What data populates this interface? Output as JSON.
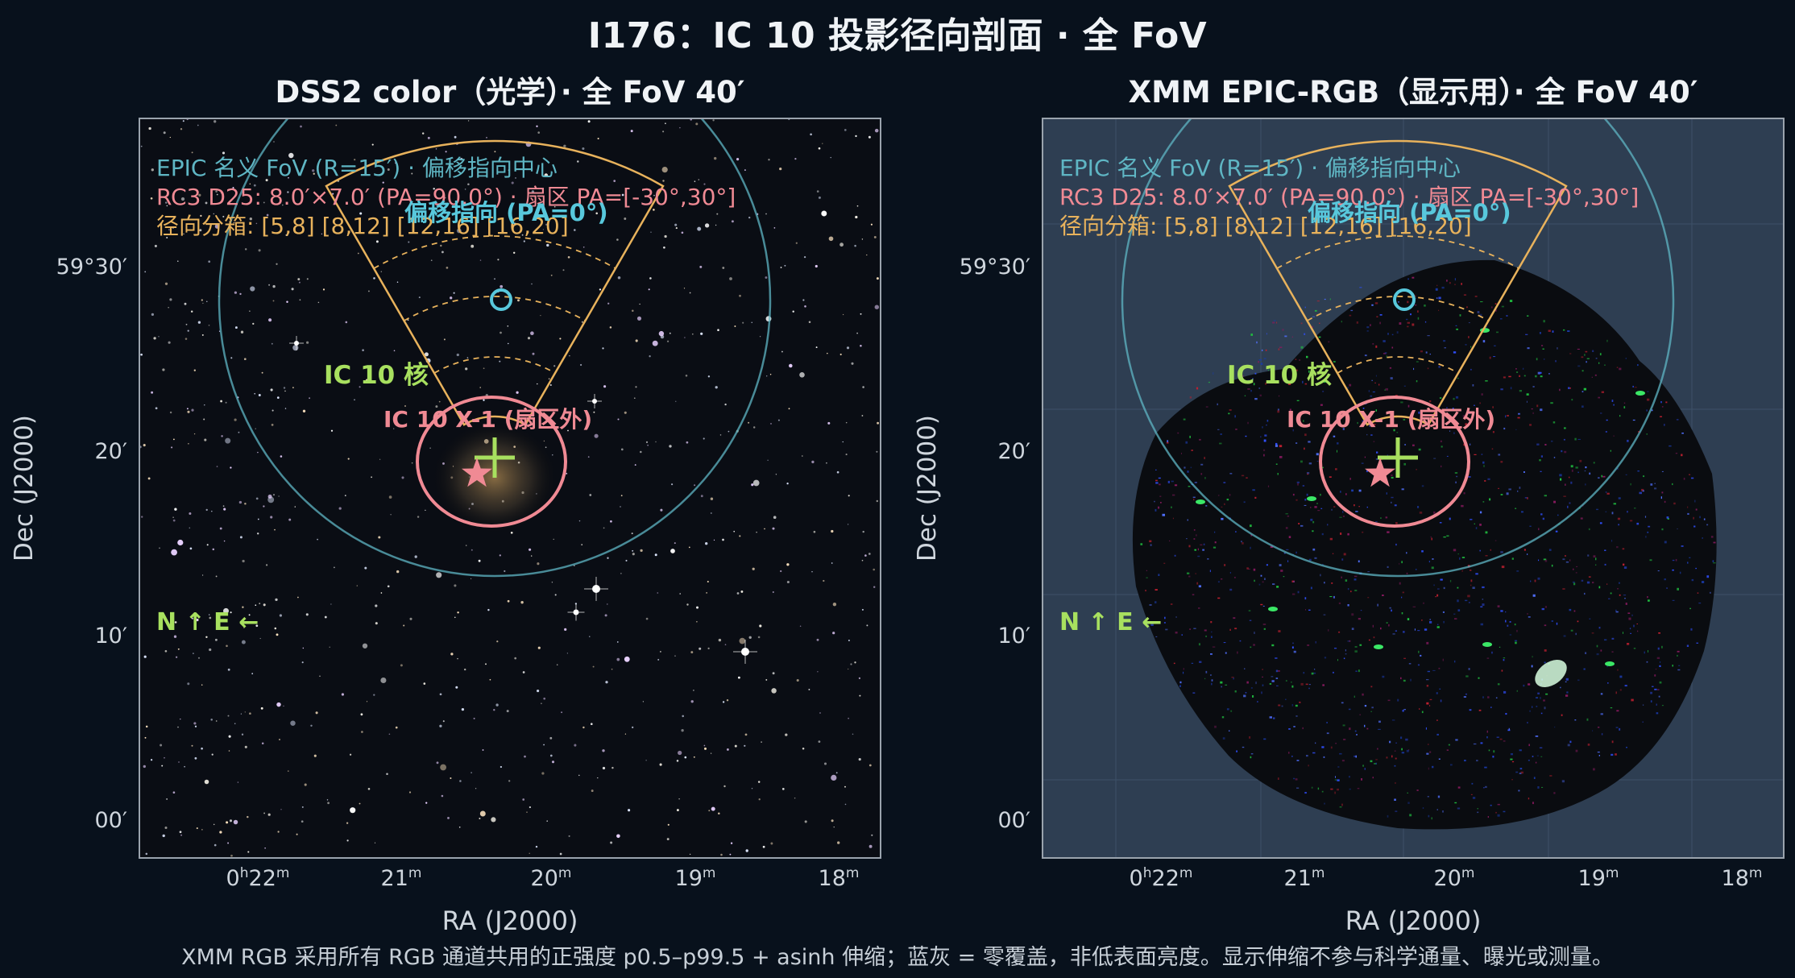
{
  "title": "I176：IC 10 投影径向剖面 · 全 FoV",
  "panels": [
    {
      "title": "DSS2 color（光学）· 全 FoV 40′"
    },
    {
      "title": "XMM EPIC-RGB（显示用）· 全 FoV 40′"
    }
  ],
  "axes": {
    "ylabel": "Dec (J2000)",
    "xlabel": "RA (J2000)",
    "yticks": [
      "59°30′",
      "20′",
      "10′",
      "00′"
    ],
    "xticks": [
      {
        "main": "0",
        "sup1": "h",
        "mid": "22",
        "sup2": "m"
      },
      {
        "main": "21",
        "sup2": "m"
      },
      {
        "main": "20",
        "sup2": "m"
      },
      {
        "main": "19",
        "sup2": "m"
      },
      {
        "main": "18",
        "sup2": "m"
      }
    ]
  },
  "annotations": {
    "fov_label": "EPIC 名义 FoV (R=15′) · 偏移指向中心",
    "rc3_label": "RC3 D25: 8.0′×7.0′ (PA=90.0°) · 扇区 PA=[-30°,30°]",
    "bins_label": "径向分箱: [5,8] [8,12] [12,16] [16,20]",
    "offset_pointing": "偏移指向 (PA=0°)",
    "core": "IC 10 核",
    "x1": "IC 10 X-1 (扇区外)",
    "compass": "N ↑   E ←"
  },
  "colors": {
    "fov": "#5fb6c4",
    "rc3": "#f08a94",
    "bins": "#e8b25c",
    "core": "#a8e05f",
    "offset": "#58c8dc"
  },
  "caption": "XMM RGB 采用所有 RGB 通道共用的正强度 p0.5–p99.5 + asinh 伸缩；蓝灰 = 零覆盖，非低表面亮度。显示伸缩不参与科学通量、曝光或测量。"
}
